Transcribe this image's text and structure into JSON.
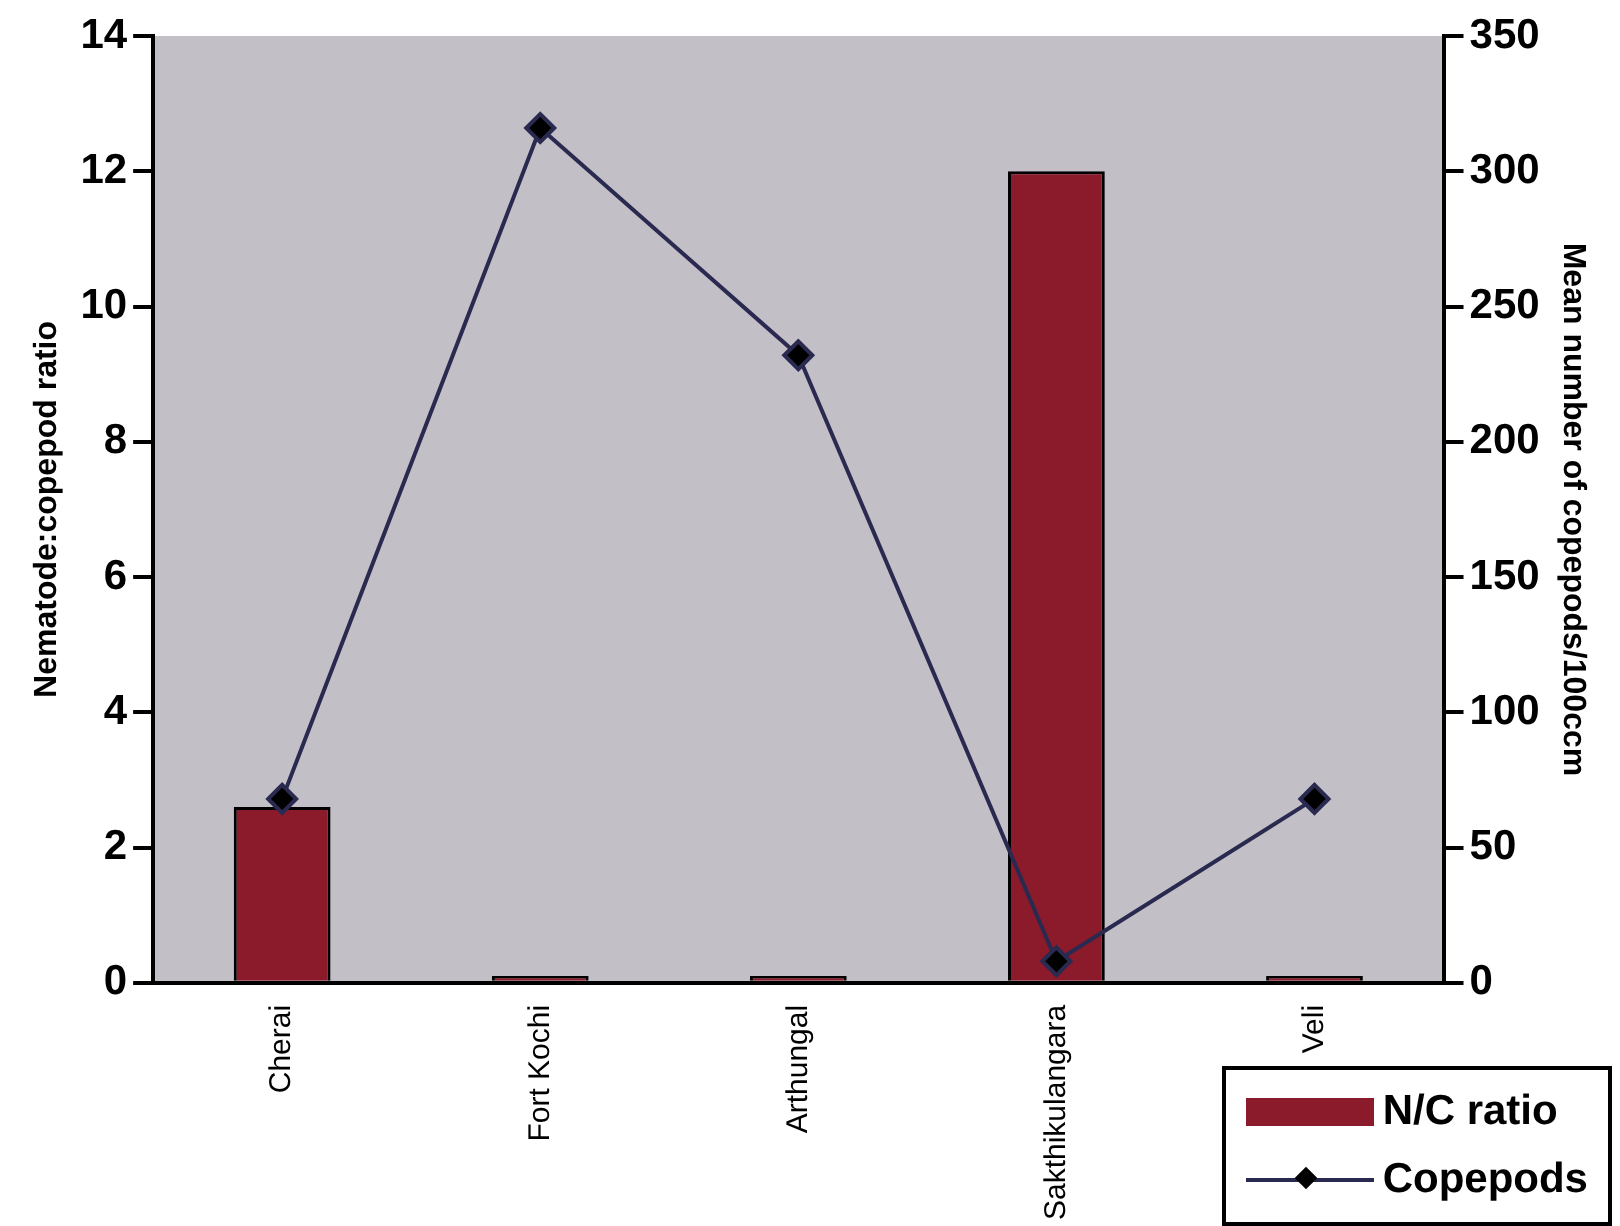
{
  "chart_data": {
    "type": "bar",
    "categories": [
      "Cherai",
      "Fort Kochi",
      "Arthungal",
      "Sakthikulangara",
      "Veli"
    ],
    "series": [
      {
        "name": "N/C ratio",
        "color": "#8b1a2b",
        "values": [
          2.6,
          0.1,
          0.1,
          12,
          0.1
        ]
      },
      {
        "name": "Copepods",
        "type": "line",
        "axis": "y2",
        "color": "#2a2a50",
        "values": [
          68,
          316,
          232,
          8,
          68
        ]
      }
    ],
    "ylabel": "Nematode:copepod ratio",
    "y2label": "Mean number of copepods/100ccm",
    "ylim": [
      0,
      14
    ],
    "yticks": [
      0,
      2,
      4,
      6,
      8,
      10,
      12,
      14
    ],
    "y2lim": [
      0,
      350
    ],
    "y2ticks": [
      0,
      50,
      100,
      150,
      200,
      250,
      300,
      350
    ],
    "legend": "bottom right",
    "marker": "diamond",
    "grid": false
  }
}
